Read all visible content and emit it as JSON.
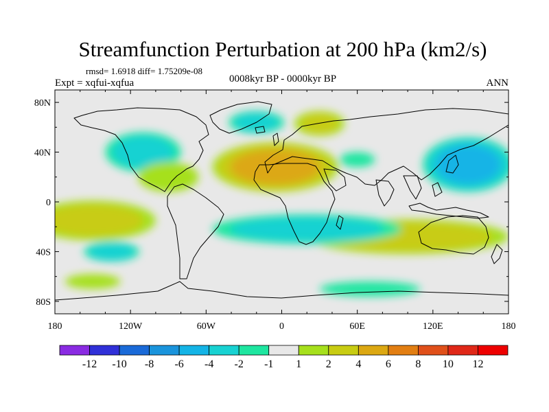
{
  "chart_data": {
    "type": "heatmap",
    "projection": "cylindrical-equidistant",
    "title": "Streamfunction Perturbation at 200 hPa (km2/s)",
    "stats_text": "rmsd= 1.6918 diff= 1.75209e-08",
    "left_label": "Expt = xqfui-xqfua",
    "center_label": "0008kyr BP - 0000kyr BP",
    "right_label": "ANN",
    "lon_range": [
      -180,
      180
    ],
    "lat_range": [
      -90,
      90
    ],
    "x_ticks": [
      {
        "value": -180,
        "label": "180"
      },
      {
        "value": -120,
        "label": "120W"
      },
      {
        "value": -60,
        "label": "60W"
      },
      {
        "value": 0,
        "label": "0"
      },
      {
        "value": 60,
        "label": "60E"
      },
      {
        "value": 120,
        "label": "120E"
      },
      {
        "value": 180,
        "label": "180"
      }
    ],
    "y_ticks": [
      {
        "value": 80,
        "label": "80N"
      },
      {
        "value": 40,
        "label": "40N"
      },
      {
        "value": 0,
        "label": "0"
      },
      {
        "value": -40,
        "label": "40S"
      },
      {
        "value": -80,
        "label": "80S"
      }
    ],
    "colorbar": {
      "levels": [
        "-12",
        "-10",
        "-8",
        "-6",
        "-4",
        "-2",
        "-1",
        "1",
        "2",
        "4",
        "6",
        "8",
        "10",
        "12"
      ],
      "colors": [
        "#8a2be2",
        "#3030d8",
        "#1a6ad8",
        "#1a94dc",
        "#14b4e6",
        "#18d2d2",
        "#1ee6a0",
        "#e8e8e8",
        "#a6e01c",
        "#c8cc12",
        "#dca812",
        "#e27e12",
        "#e0501a",
        "#e02818",
        "#ee0000"
      ]
    },
    "features": [
      {
        "name": "n-atlantic-eurafrica-high",
        "lon": -5,
        "lat": 28,
        "rlon": 50,
        "rlat": 20,
        "value": 5.5
      },
      {
        "name": "nw-pacific-low",
        "lon": 148,
        "lat": 30,
        "rlon": 36,
        "rlat": 22,
        "value": -5.5
      },
      {
        "name": "s-indian-australia-high",
        "lon": 100,
        "lat": -28,
        "rlon": 80,
        "rlat": 14,
        "value": 2.8
      },
      {
        "name": "se-pacific-high",
        "lon": -150,
        "lat": -15,
        "rlon": 50,
        "rlat": 16,
        "value": 2.2
      },
      {
        "name": "s-atlantic-low",
        "lon": 20,
        "lat": -22,
        "rlon": 75,
        "rlat": 12,
        "value": -2.3
      },
      {
        "name": "sw-pacific-low",
        "lon": -135,
        "lat": -40,
        "rlon": 22,
        "rlat": 8,
        "value": -3.2
      },
      {
        "name": "n-america-low",
        "lon": -110,
        "lat": 40,
        "rlon": 30,
        "rlat": 16,
        "value": -2.4
      },
      {
        "name": "n-america-high",
        "lon": -90,
        "lat": 20,
        "rlon": 24,
        "rlat": 12,
        "value": 1.8
      },
      {
        "name": "north-atlantic-low",
        "lon": -20,
        "lat": 64,
        "rlon": 22,
        "rlat": 9,
        "value": -2.5
      },
      {
        "name": "scandinavia-high",
        "lon": 30,
        "lat": 63,
        "rlon": 20,
        "rlat": 10,
        "value": 2.0
      },
      {
        "name": "europe-low",
        "lon": 60,
        "lat": 34,
        "rlon": 14,
        "rlat": 6,
        "value": -1.5
      },
      {
        "name": "southern-ocean-low",
        "lon": 70,
        "lat": -70,
        "rlon": 40,
        "rlat": 6,
        "value": -1.8
      },
      {
        "name": "s-pacific-high-lat",
        "lon": -150,
        "lat": -64,
        "rlon": 22,
        "rlat": 6,
        "value": 1.6
      }
    ]
  }
}
